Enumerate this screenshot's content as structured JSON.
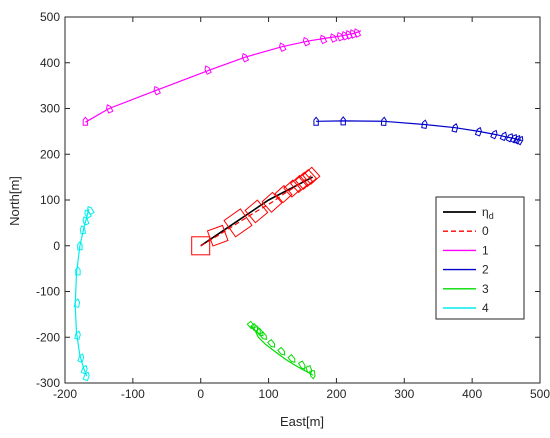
{
  "chart_data": {
    "type": "line",
    "xlabel": "East[m]",
    "ylabel": "North[m]",
    "xlim": [
      -200,
      500
    ],
    "ylim": [
      -300,
      500
    ],
    "xticks": [
      -200,
      -100,
      0,
      100,
      200,
      300,
      400,
      500
    ],
    "yticks": [
      -300,
      -200,
      -100,
      0,
      100,
      200,
      300,
      400,
      500
    ],
    "xtick_labels": [
      "-200",
      "-100",
      "0",
      "100",
      "200",
      "300",
      "400",
      "500"
    ],
    "ytick_labels": [
      "-300",
      "-200",
      "-100",
      "0",
      "100",
      "200",
      "300",
      "400",
      "500"
    ],
    "grid": false,
    "legend_position": "right",
    "legend": {
      "eta_symbol": "η",
      "eta_subscript": "d",
      "labels": [
        "0",
        "1",
        "2",
        "3",
        "4"
      ]
    },
    "series": [
      {
        "name": "η_d",
        "color": "#000000",
        "style": "solid",
        "x": [
          0,
          50,
          100,
          165
        ],
        "y": [
          0,
          50,
          100,
          150
        ],
        "markers": []
      },
      {
        "name": "0",
        "color": "#ff0000",
        "style": "dashed",
        "x": [
          0,
          25,
          55,
          82,
          105,
          122,
          135,
          145,
          152,
          158,
          163
        ],
        "y": [
          0,
          22,
          50,
          75,
          95,
          113,
          125,
          135,
          142,
          148,
          153
        ],
        "markers": [
          {
            "x": 0,
            "y": 0,
            "s": 18,
            "a": 0
          },
          {
            "x": 25,
            "y": 22,
            "s": 16,
            "a": 20
          },
          {
            "x": 55,
            "y": 50,
            "s": 20,
            "a": 35
          },
          {
            "x": 82,
            "y": 75,
            "s": 16,
            "a": 40
          },
          {
            "x": 105,
            "y": 95,
            "s": 14,
            "a": 42
          },
          {
            "x": 122,
            "y": 113,
            "s": 12,
            "a": 42
          },
          {
            "x": 135,
            "y": 125,
            "s": 12,
            "a": 42
          },
          {
            "x": 145,
            "y": 135,
            "s": 12,
            "a": 42
          },
          {
            "x": 152,
            "y": 142,
            "s": 12,
            "a": 42
          },
          {
            "x": 158,
            "y": 148,
            "s": 12,
            "a": 42
          },
          {
            "x": 163,
            "y": 153,
            "s": 12,
            "a": 42
          }
        ]
      },
      {
        "name": "1",
        "color": "#ff00ff",
        "style": "solid",
        "x": [
          -170,
          -135,
          -65,
          15,
          65,
          120,
          160,
          190,
          208,
          218,
          225,
          232,
          236
        ],
        "y": [
          270,
          300,
          340,
          385,
          412,
          435,
          448,
          455,
          459,
          462,
          464,
          467,
          470
        ],
        "markers": [
          {
            "x": -170,
            "y": 272,
            "s": 8,
            "a": 0
          },
          {
            "x": -135,
            "y": 300,
            "s": 8,
            "a": 25
          },
          {
            "x": -65,
            "y": 340,
            "s": 8,
            "a": 25
          },
          {
            "x": 10,
            "y": 385,
            "s": 8,
            "a": 25
          },
          {
            "x": 65,
            "y": 412,
            "s": 8,
            "a": 25
          },
          {
            "x": 120,
            "y": 435,
            "s": 8,
            "a": 25
          },
          {
            "x": 155,
            "y": 447,
            "s": 8,
            "a": 25
          },
          {
            "x": 180,
            "y": 452,
            "s": 8,
            "a": 25
          },
          {
            "x": 195,
            "y": 455,
            "s": 8,
            "a": 25
          },
          {
            "x": 205,
            "y": 458,
            "s": 8,
            "a": 25
          },
          {
            "x": 212,
            "y": 460,
            "s": 8,
            "a": 25
          },
          {
            "x": 218,
            "y": 462,
            "s": 8,
            "a": 25
          },
          {
            "x": 224,
            "y": 464,
            "s": 8,
            "a": 25
          },
          {
            "x": 230,
            "y": 466,
            "s": 8,
            "a": 25
          }
        ]
      },
      {
        "name": "2",
        "color": "#0000cc",
        "style": "solid",
        "x": [
          170,
          210,
          270,
          330,
          375,
          410,
          435,
          450,
          460,
          467,
          473
        ],
        "y": [
          272,
          273,
          272,
          265,
          258,
          250,
          243,
          238,
          235,
          232,
          230
        ],
        "markers": [
          {
            "x": 170,
            "y": 272,
            "s": 8,
            "a": 0
          },
          {
            "x": 210,
            "y": 273,
            "s": 8,
            "a": 0
          },
          {
            "x": 270,
            "y": 272,
            "s": 8,
            "a": -5
          },
          {
            "x": 330,
            "y": 266,
            "s": 8,
            "a": -10
          },
          {
            "x": 375,
            "y": 258,
            "s": 8,
            "a": -15
          },
          {
            "x": 410,
            "y": 250,
            "s": 8,
            "a": -20
          },
          {
            "x": 433,
            "y": 244,
            "s": 8,
            "a": -25
          },
          {
            "x": 447,
            "y": 240,
            "s": 8,
            "a": -25
          },
          {
            "x": 456,
            "y": 237,
            "s": 8,
            "a": -30
          },
          {
            "x": 462,
            "y": 235,
            "s": 8,
            "a": -30
          },
          {
            "x": 467,
            "y": 233,
            "s": 8,
            "a": -30
          },
          {
            "x": 471,
            "y": 231,
            "s": 8,
            "a": -30
          }
        ]
      },
      {
        "name": "3",
        "color": "#00dd00",
        "style": "solid",
        "x": [
          75,
          80,
          85,
          95,
          110,
          125,
          140,
          152,
          160,
          165
        ],
        "y": [
          -175,
          -185,
          -200,
          -215,
          -232,
          -248,
          -262,
          -272,
          -278,
          -283
        ],
        "markers": [
          {
            "x": 75,
            "y": -175,
            "s": 8,
            "a": -140
          },
          {
            "x": 80,
            "y": -180,
            "s": 8,
            "a": -140
          },
          {
            "x": 84,
            "y": -185,
            "s": 8,
            "a": -140
          },
          {
            "x": 88,
            "y": -190,
            "s": 8,
            "a": -140
          },
          {
            "x": 93,
            "y": -198,
            "s": 8,
            "a": -140
          },
          {
            "x": 105,
            "y": -215,
            "s": 8,
            "a": -140
          },
          {
            "x": 120,
            "y": -232,
            "s": 8,
            "a": -140
          },
          {
            "x": 135,
            "y": -248,
            "s": 8,
            "a": -140
          },
          {
            "x": 150,
            "y": -262,
            "s": 8,
            "a": -150
          },
          {
            "x": 160,
            "y": -272,
            "s": 8,
            "a": -160
          },
          {
            "x": 165,
            "y": -282,
            "s": 8,
            "a": -170
          }
        ]
      },
      {
        "name": "4",
        "color": "#00eeee",
        "style": "solid",
        "x": [
          -165,
          -172,
          -178,
          -183,
          -185,
          -183,
          -178,
          -172,
          -168
        ],
        "y": [
          80,
          40,
          0,
          -60,
          -130,
          -190,
          -240,
          -270,
          -285
        ],
        "markers": [
          {
            "x": -163,
            "y": 78,
            "s": 8,
            "a": 30
          },
          {
            "x": -167,
            "y": 70,
            "s": 8,
            "a": 30
          },
          {
            "x": -170,
            "y": 55,
            "s": 8,
            "a": 20
          },
          {
            "x": -174,
            "y": 35,
            "s": 8,
            "a": 10
          },
          {
            "x": -178,
            "y": 0,
            "s": 8,
            "a": 0
          },
          {
            "x": -181,
            "y": -55,
            "s": 8,
            "a": 0
          },
          {
            "x": -182,
            "y": -125,
            "s": 8,
            "a": -10
          },
          {
            "x": -181,
            "y": -195,
            "s": 8,
            "a": -15
          },
          {
            "x": -176,
            "y": -245,
            "s": 8,
            "a": -20
          },
          {
            "x": -171,
            "y": -270,
            "s": 8,
            "a": -20
          },
          {
            "x": -168,
            "y": -285,
            "s": 8,
            "a": -20
          }
        ]
      }
    ]
  }
}
